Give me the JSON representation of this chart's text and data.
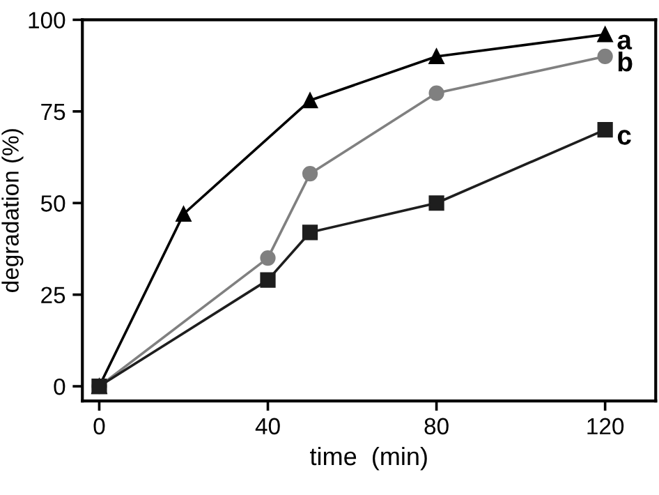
{
  "chart_data": {
    "type": "line",
    "xlabel": "time  (min)",
    "ylabel": "degradation (%)",
    "xlim": [
      -4,
      132
    ],
    "ylim": [
      -4,
      100
    ],
    "xticks": [
      0,
      40,
      80,
      120
    ],
    "yticks": [
      0,
      25,
      50,
      75,
      100
    ],
    "grid": false,
    "legend": false,
    "series": [
      {
        "name": "a",
        "color": "#000000",
        "marker": "triangle",
        "x": [
          0,
          20,
          50,
          80,
          120
        ],
        "values": [
          0,
          47,
          78,
          90,
          96
        ]
      },
      {
        "name": "b",
        "color": "#808080",
        "marker": "circle",
        "x": [
          0,
          40,
          50,
          80,
          120
        ],
        "values": [
          0,
          35,
          58,
          80,
          90
        ]
      },
      {
        "name": "c",
        "color": "#1e1e1e",
        "marker": "square",
        "x": [
          0,
          40,
          50,
          80,
          120
        ],
        "values": [
          0,
          29,
          42,
          50,
          70
        ]
      }
    ]
  }
}
